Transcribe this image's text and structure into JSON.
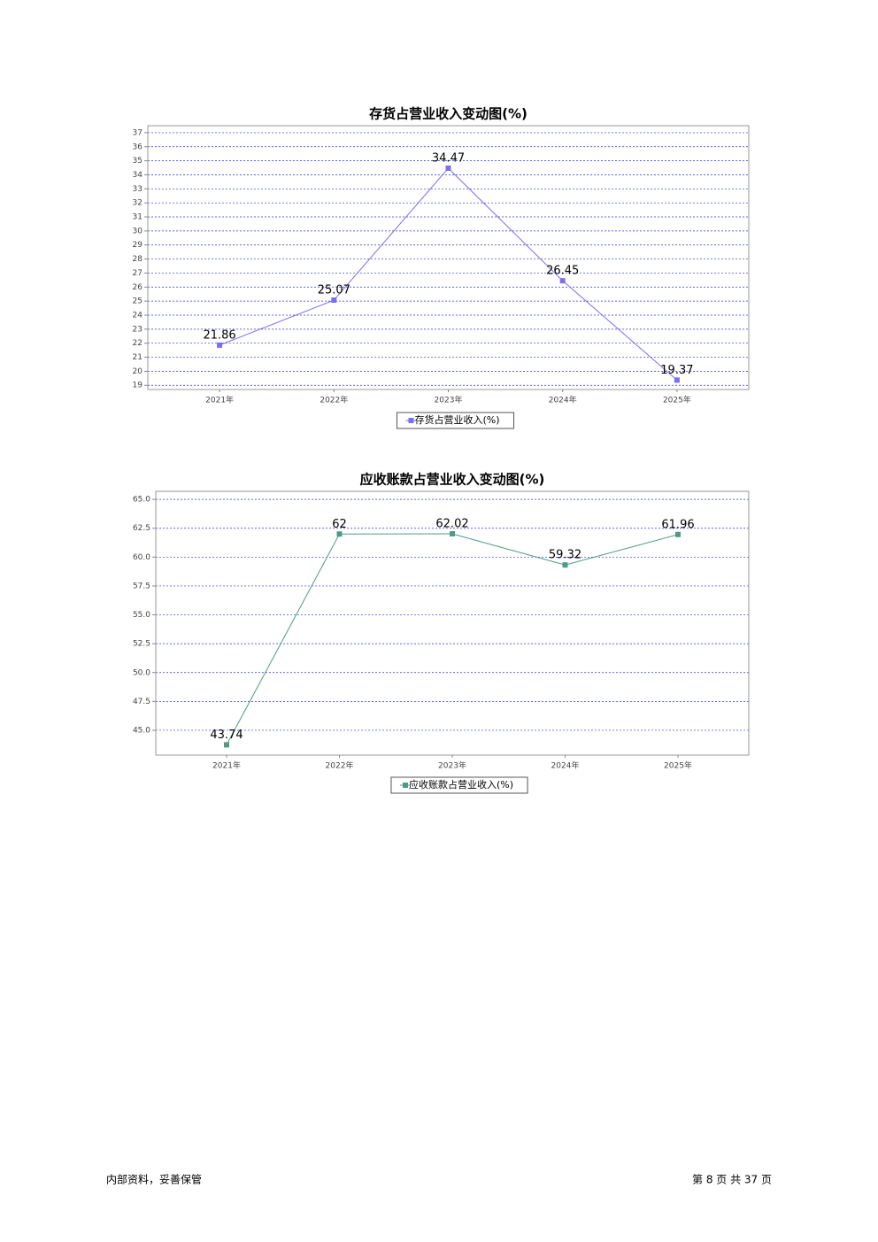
{
  "chart_data": [
    {
      "type": "line",
      "title": "存货占营业收入变动图(%)",
      "categories": [
        "2021年",
        "2022年",
        "2023年",
        "2024年",
        "2025年"
      ],
      "series": [
        {
          "name": "存货占营业收入(%)",
          "color": "#7b6ff0",
          "values": [
            21.86,
            25.07,
            34.47,
            26.45,
            19.37
          ]
        }
      ],
      "ylim": [
        18.7,
        37.5
      ],
      "yticks": [
        19,
        20,
        21,
        22,
        23,
        24,
        25,
        26,
        27,
        28,
        29,
        30,
        31,
        32,
        33,
        34,
        35,
        36,
        37
      ],
      "grid": true
    },
    {
      "type": "line",
      "title": "应收账款占营业收入变动图(%)",
      "categories": [
        "2021年",
        "2022年",
        "2023年",
        "2024年",
        "2025年"
      ],
      "series": [
        {
          "name": "应收账款占营业收入(%)",
          "color": "#4f9a85",
          "values": [
            43.74,
            62,
            62.02,
            59.32,
            61.96
          ]
        }
      ],
      "ylim": [
        42.85,
        65.7
      ],
      "yticks": [
        {
          "value": 45,
          "label": "45.0"
        },
        47.5,
        {
          "value": 50,
          "label": "50.0"
        },
        52.5,
        {
          "value": 55,
          "label": "55.0"
        },
        57.5,
        {
          "value": 60,
          "label": "60.0"
        },
        62.5,
        {
          "value": 65,
          "label": "65.0"
        }
      ],
      "grid": true
    }
  ],
  "footer": {
    "left": "内部资料，妥善保管",
    "right": "第 8 页 共 37 页"
  }
}
